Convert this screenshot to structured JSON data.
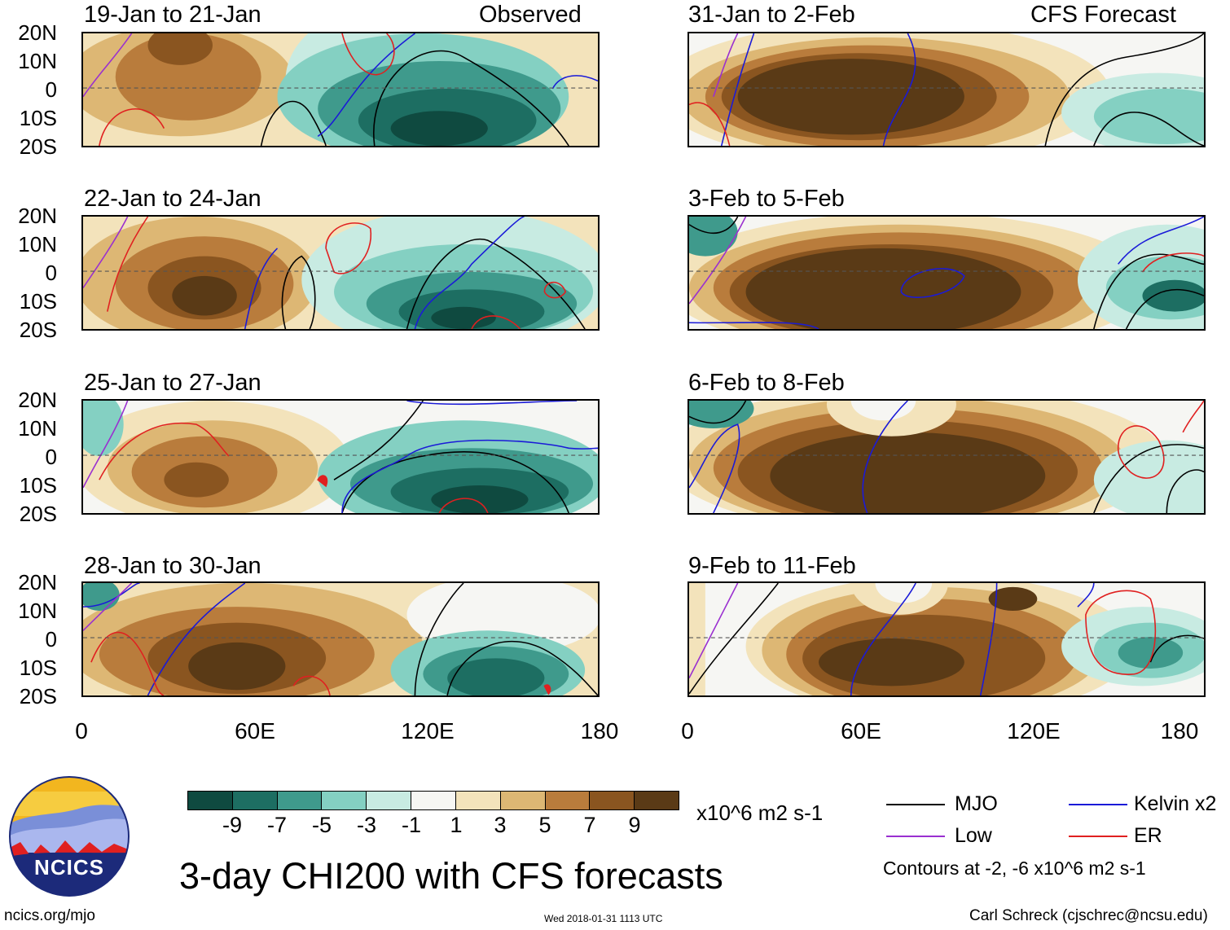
{
  "lat_labels": [
    "20N",
    "10N",
    "0",
    "10S",
    "20S"
  ],
  "lon_labels": [
    "0",
    "60E",
    "120E",
    "180"
  ],
  "left_panels": [
    {
      "title": "19-Jan to 21-Jan",
      "tag": "Observed"
    },
    {
      "title": "22-Jan to 24-Jan",
      "tag": ""
    },
    {
      "title": "25-Jan to 27-Jan",
      "tag": ""
    },
    {
      "title": "28-Jan to 30-Jan",
      "tag": ""
    }
  ],
  "right_panels": [
    {
      "title": "31-Jan to 2-Feb",
      "tag": "CFS Forecast"
    },
    {
      "title": "3-Feb to 5-Feb",
      "tag": ""
    },
    {
      "title": "6-Feb to 8-Feb",
      "tag": ""
    },
    {
      "title": "9-Feb to 11-Feb",
      "tag": ""
    }
  ],
  "colorbar": {
    "ticks": [
      "-9",
      "-7",
      "-5",
      "-3",
      "-1",
      "1",
      "3",
      "5",
      "7",
      "9"
    ],
    "colors": [
      "#0f4a40",
      "#1d6e62",
      "#3f9a8c",
      "#84d0c2",
      "#c8ebe2",
      "#f6f6f3",
      "#f3e3bb",
      "#ddb774",
      "#b97c3c",
      "#8a5520",
      "#5a3a16"
    ],
    "units": "x10^6 m2 s-1"
  },
  "legend": {
    "items": [
      {
        "label": "MJO",
        "color": "#000000"
      },
      {
        "label": "Kelvin x2",
        "color": "#1a1ad8"
      },
      {
        "label": "Low",
        "color": "#9a2fd0"
      },
      {
        "label": "ER",
        "color": "#e02020"
      }
    ],
    "contours_note": "Contours at -2, -6 x10^6 m2 s-1"
  },
  "logo": {
    "text": "NCICS"
  },
  "main_title": "3-day CHI200 with CFS forecasts",
  "footer": {
    "left": "ncics.org/mjo",
    "center": "Wed 2018-01-31 1113 UTC",
    "right": "Carl Schreck (cjschrec@ncsu.edu)"
  }
}
